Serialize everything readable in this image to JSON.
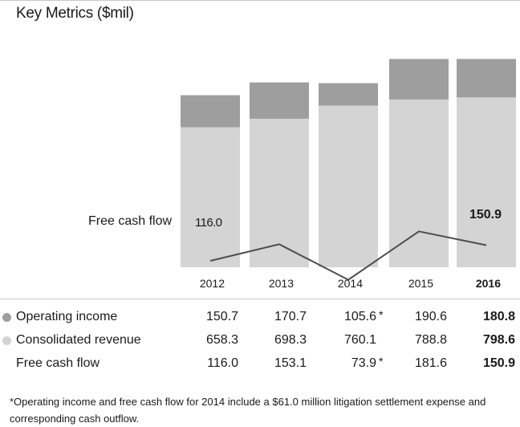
{
  "title": "Key Metrics ($mil)",
  "colors": {
    "operating_income": "#9e9e9e",
    "consolidated_revenue": "#d4d4d4",
    "free_cash_flow_line": "#4d4d4d"
  },
  "chart_data": {
    "type": "bar",
    "title": "Key Metrics ($mil)",
    "categories": [
      "2012",
      "2013",
      "2014",
      "2015",
      "2016"
    ],
    "highlight_category": "2016",
    "series": [
      {
        "name": "Operating income",
        "kind": "stacked-bar-top",
        "values": [
          150.7,
          170.7,
          105.6,
          190.6,
          180.8
        ]
      },
      {
        "name": "Consolidated revenue",
        "kind": "stacked-bar-bottom",
        "values": [
          658.3,
          698.3,
          760.1,
          788.8,
          798.6
        ]
      },
      {
        "name": "Free cash flow",
        "kind": "line",
        "values": [
          116.0,
          153.1,
          73.9,
          181.6,
          150.9
        ]
      }
    ],
    "line_label": "Free cash flow",
    "line_point_labels": [
      {
        "index": 0,
        "text": "116.0"
      },
      {
        "index": 4,
        "text": "150.9"
      }
    ],
    "bar_scale": [
      0,
      1000
    ],
    "line_scale": [
      0,
      400
    ]
  },
  "table": {
    "years": [
      "2012",
      "2013",
      "2014",
      "2015",
      "2016"
    ],
    "rows": [
      {
        "label": "Operating income",
        "values": [
          "150.7",
          "170.7",
          "105.6",
          "190.6",
          "180.8"
        ],
        "starred_index": 2
      },
      {
        "label": "Consolidated revenue",
        "values": [
          "658.3",
          "698.3",
          "760.1",
          "788.8",
          "798.6"
        ],
        "starred_index": -1
      },
      {
        "label": "Free cash flow",
        "values": [
          "116.0",
          "153.1",
          "73.9",
          "181.6",
          "150.9"
        ],
        "starred_index": 2
      }
    ],
    "star": "*"
  },
  "footnote": "*Operating income and free cash flow for 2014 include a $61.0 million litigation settlement expense and corresponding cash outflow."
}
